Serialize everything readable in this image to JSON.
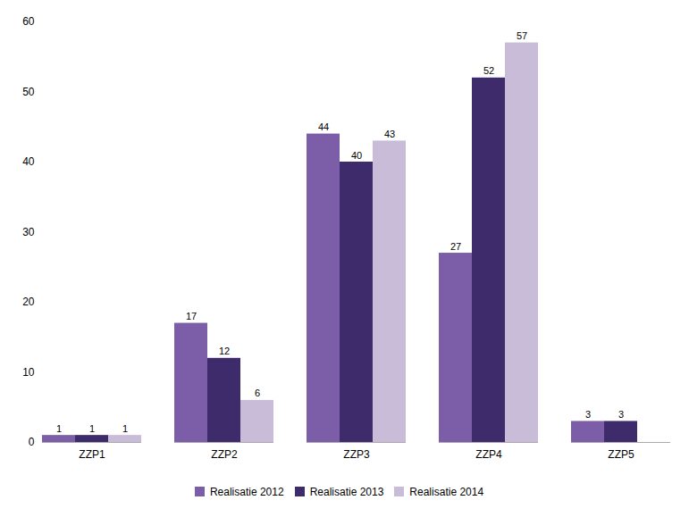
{
  "chart_data": {
    "type": "bar",
    "categories": [
      "ZZP1",
      "ZZP2",
      "ZZP3",
      "ZZP4",
      "ZZP5"
    ],
    "series": [
      {
        "name": "Realisatie 2012",
        "color": "#7B5EA7",
        "values": [
          1,
          17,
          44,
          27,
          3
        ]
      },
      {
        "name": "Realisatie 2013",
        "color": "#3D2B6B",
        "values": [
          1,
          12,
          40,
          52,
          3
        ]
      },
      {
        "name": "Realisatie 2014",
        "color": "#C8BCD8",
        "values": [
          1,
          6,
          43,
          57,
          0
        ],
        "value_labels": [
          "1",
          "6",
          "43",
          "57",
          null
        ]
      }
    ],
    "ylim": [
      0,
      60
    ],
    "yticks": [
      0,
      10,
      20,
      30,
      40,
      50,
      60
    ],
    "grid": false,
    "legend": "bottom",
    "data_labels": true
  }
}
